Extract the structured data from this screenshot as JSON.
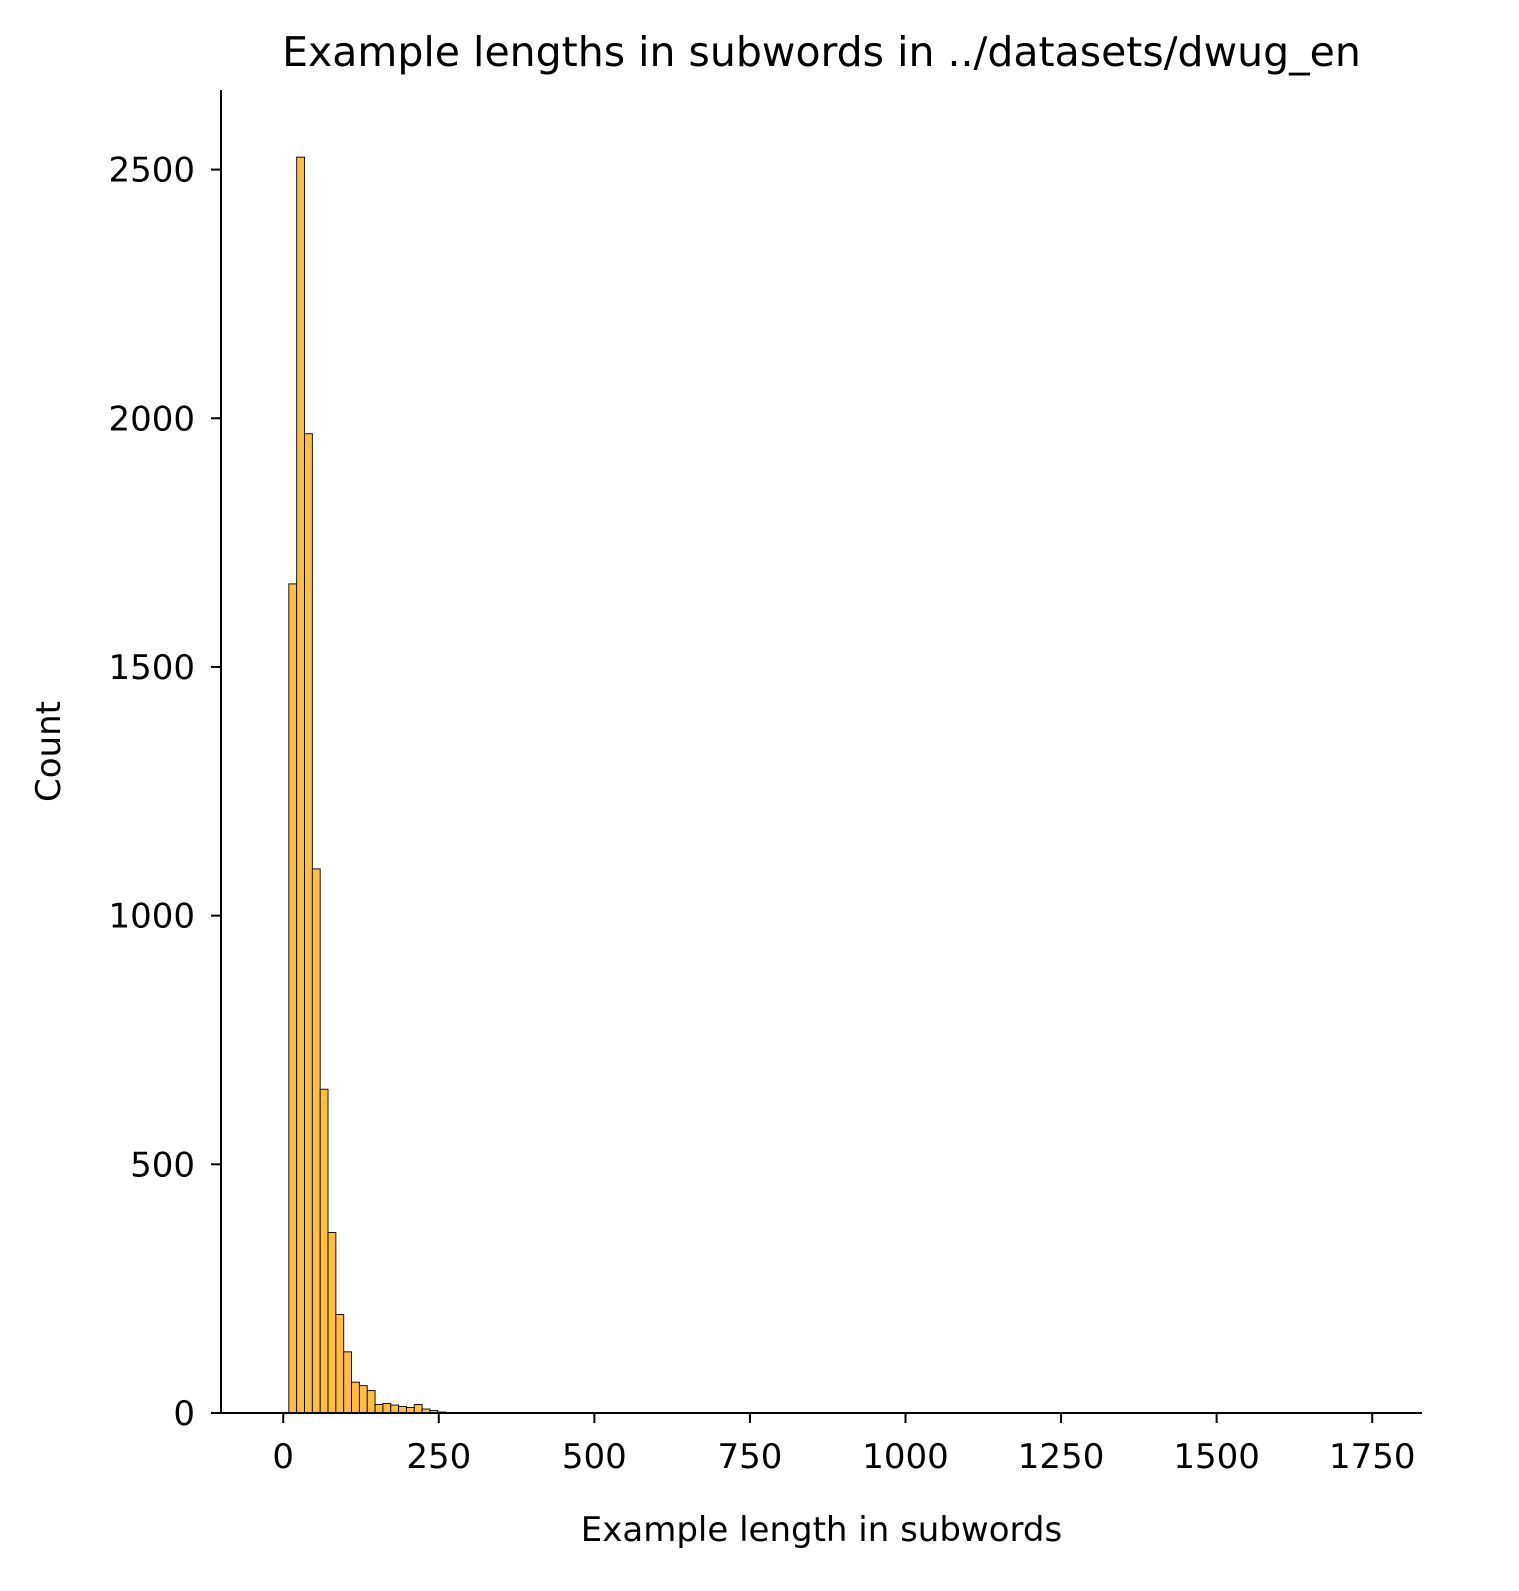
{
  "chart_data": {
    "type": "bar",
    "title": "Example lengths in subwords in ../datasets/dwug_en",
    "xlabel": "Example length in subwords",
    "ylabel": "Count",
    "xlim": [
      -100,
      1830
    ],
    "ylim": [
      0,
      2660
    ],
    "xticks": [
      0,
      250,
      500,
      750,
      1000,
      1250,
      1500,
      1750
    ],
    "yticks": [
      0,
      500,
      1000,
      1500,
      2000,
      2500
    ],
    "bin_width": 12.6,
    "bin_start": 9,
    "counts": [
      1667,
      2525,
      1969,
      1094,
      651,
      363,
      198,
      123,
      62,
      55,
      45,
      17,
      19,
      16,
      13,
      11,
      17,
      8,
      5,
      2,
      1,
      1,
      1,
      0,
      0,
      0,
      0,
      0,
      0,
      0,
      0,
      0,
      0,
      0,
      0,
      0,
      0,
      0,
      0,
      0,
      0,
      0,
      0,
      0,
      0,
      0,
      0,
      0,
      0,
      0,
      0,
      0,
      0,
      0,
      0,
      0,
      0,
      0,
      0,
      0,
      0,
      0,
      0,
      0,
      0,
      0,
      0,
      0,
      0,
      0,
      0,
      0,
      0,
      0,
      0,
      0,
      0,
      0,
      0,
      0,
      0,
      0,
      0,
      0,
      0,
      0,
      0,
      0,
      0,
      0,
      0,
      0,
      0,
      0,
      0,
      0,
      0,
      0,
      0,
      0,
      0,
      0,
      0,
      0,
      0,
      0,
      0,
      0,
      0,
      0,
      0,
      0,
      0,
      0,
      0,
      0,
      0,
      0,
      0,
      0,
      0,
      0,
      0,
      0,
      0,
      0,
      0,
      0,
      0,
      0,
      0,
      0,
      0,
      0,
      0,
      1
    ],
    "bar_color": "#FFBD42",
    "edge_color": "#000000",
    "grid": false
  }
}
